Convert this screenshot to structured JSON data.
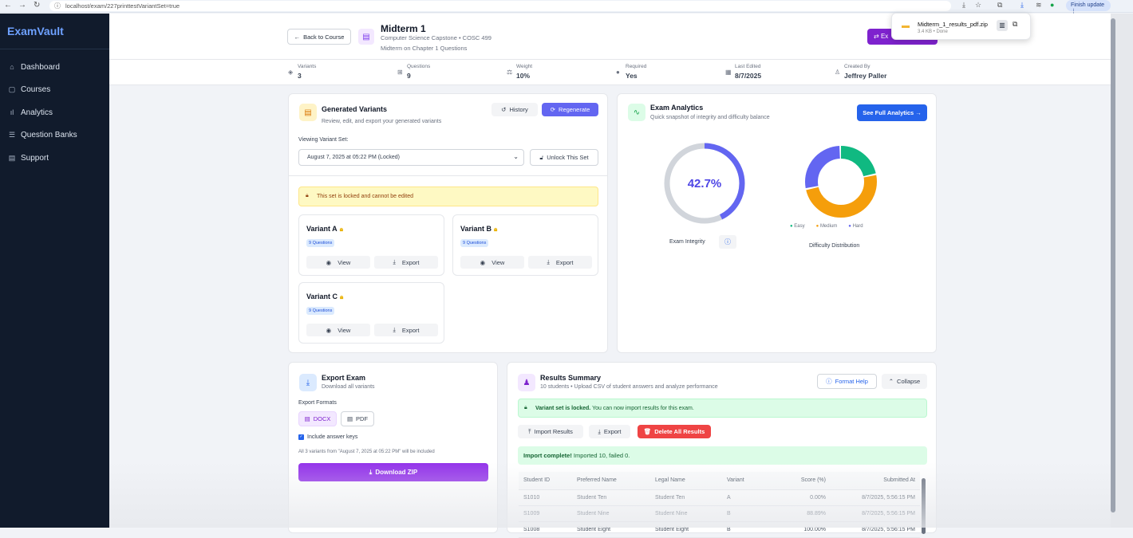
{
  "browser": {
    "url": "localhost/exam/227printtestVariantSet=true",
    "profile_button": "Finish update"
  },
  "download": {
    "filename": "Midterm_1_results_pdf.zip",
    "size": "3.4 KB • Done"
  },
  "sidebar": {
    "logo": "ExamVault",
    "items": [
      {
        "label": "Dashboard",
        "icon": "home-icon"
      },
      {
        "label": "Courses",
        "icon": "book-icon"
      },
      {
        "label": "Analytics",
        "icon": "bar-chart-icon"
      },
      {
        "label": "Question Banks",
        "icon": "list-icon"
      },
      {
        "label": "Support",
        "icon": "document-icon"
      }
    ]
  },
  "header": {
    "back_label": "Back to Course",
    "title": "Midterm 1",
    "subtitle": "Computer Science Capstone • COSC 499",
    "description": "Midterm on Chapter 1 Questions",
    "export_label": "Ex"
  },
  "stats": [
    {
      "label": "Variants",
      "value": "3"
    },
    {
      "label": "Questions",
      "value": "9"
    },
    {
      "label": "Weight",
      "value": "10%"
    },
    {
      "label": "Required",
      "value": "Yes"
    },
    {
      "label": "Last Edited",
      "value": "8/7/2025"
    },
    {
      "label": "Created By",
      "value": "Jeffrey Paller"
    }
  ],
  "variants_card": {
    "title": "Generated Variants",
    "subtitle": "Review, edit, and export your generated variants",
    "history_label": "History",
    "regenerate_label": "Regenerate",
    "viewing_label": "Viewing Variant Set:",
    "selected_set": "August 7, 2025 at 05:22 PM (Locked)",
    "unlock_label": "Unlock This Set",
    "locked_notice": "This set is locked and cannot be edited",
    "variants": [
      {
        "name": "Variant A",
        "badge": "9 Questions"
      },
      {
        "name": "Variant B",
        "badge": "9 Questions"
      },
      {
        "name": "Variant C",
        "badge": "9 Questions"
      }
    ],
    "view_label": "View",
    "export_label": "Export"
  },
  "analytics": {
    "title": "Exam Analytics",
    "subtitle": "Quick snapshot of integrity and difficulty balance",
    "button": "See Full Analytics →",
    "integrity_value": "42.7%",
    "integrity_fraction": 0.427,
    "integrity_label": "Exam Integrity",
    "difficulty_label": "Difficulty Distribution",
    "legend": [
      {
        "label": "Easy",
        "color": "#10b981"
      },
      {
        "label": "Medium",
        "color": "#f59e0b"
      },
      {
        "label": "Hard",
        "color": "#6366f1"
      }
    ],
    "difficulty_split": [
      0.22,
      0.5,
      0.28
    ]
  },
  "export_card": {
    "title": "Export Exam",
    "subtitle": "Download all variants",
    "formats_label": "Export Formats",
    "format_docx": "DOCX",
    "format_pdf": "PDF",
    "include_keys": "Include answer keys",
    "note": "All 3 variants from \"August 7, 2025 at 05:22 PM\" will be included",
    "download_label": "Download ZIP"
  },
  "results": {
    "title": "Results Summary",
    "subtitle": "10 students • Upload CSV of student answers and analyze performance",
    "format_help": "Format Help",
    "collapse": "Collapse",
    "locked_bold": "Variant set is locked.",
    "locked_rest": " You can now import results for this exam.",
    "import_label": "Import Results",
    "export_label": "Export",
    "delete_label": "Delete All Results",
    "complete_bold": "Import complete!",
    "complete_rest": " Imported 10, failed 0.",
    "columns": [
      "Student ID",
      "Preferred Name",
      "Legal Name",
      "Variant",
      "Score (%)",
      "Submitted At"
    ],
    "rows": [
      [
        "S1010",
        "Student Ten",
        "Student Ten",
        "A",
        "0.00%",
        "8/7/2025, 5:56:15 PM"
      ],
      [
        "S1009",
        "Student Nine",
        "Student Nine",
        "B",
        "88.89%",
        "8/7/2025, 5:56:15 PM"
      ],
      [
        "S1008",
        "Student Eight",
        "Student Eight",
        "B",
        "100.00%",
        "8/7/2025, 5:56:15 PM"
      ]
    ]
  }
}
